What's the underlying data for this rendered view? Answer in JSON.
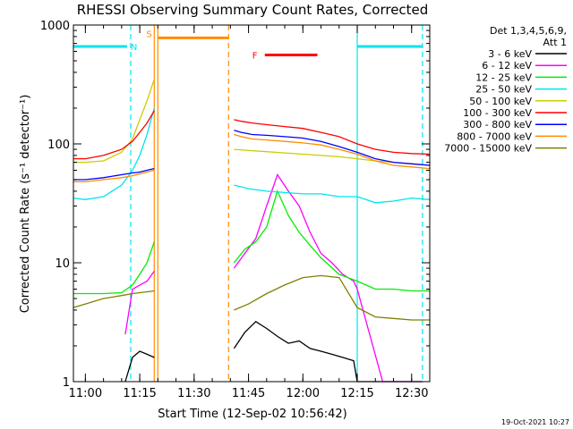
{
  "chart_data": {
    "type": "line",
    "title": "RHESSI Observing Summary Count Rates, Corrected",
    "xlabel": "Start Time (12-Sep-02 10:56:42)",
    "ylabel": "Corrected Count Rate (s⁻¹ detector⁻¹)",
    "y_scale": "log",
    "xlim": [
      "10:56:42",
      "12:35:00"
    ],
    "ylim": [
      1,
      1000
    ],
    "x_ticks": [
      "11:00",
      "11:15",
      "11:30",
      "11:45",
      "12:00",
      "12:15",
      "12:30"
    ],
    "y_ticks": [
      "1",
      "10",
      "100",
      "1000"
    ],
    "legend_header": [
      "Det 1,3,4,5,6,9,",
      "Att 1"
    ],
    "legend_position": "right",
    "timestamp": "19-Oct-2021 10:27",
    "annotations": [
      {
        "label": "N",
        "color": "#00e5ee",
        "bars": [
          [
            "10:56:42",
            "11:11:30"
          ],
          [
            "12:15:00",
            "12:33:00"
          ]
        ],
        "level": 660
      },
      {
        "label": "S",
        "color": "#ff8c00",
        "bars": [
          [
            "11:20:00",
            "11:39:30"
          ]
        ],
        "level": 780
      },
      {
        "label": "F",
        "color": "#ff0000",
        "bars": [
          [
            "11:49:30",
            "12:04:00"
          ]
        ],
        "level": 560
      }
    ],
    "markers": [
      {
        "time": "11:12:30",
        "style": "dashed",
        "color": "#00e5ee"
      },
      {
        "time": "11:19:00",
        "style": "solid",
        "color": "#ff8c00"
      },
      {
        "time": "11:20:00",
        "style": "solid",
        "color": "#ff8c00"
      },
      {
        "time": "11:39:30",
        "style": "dashed",
        "color": "#ff8c00"
      },
      {
        "time": "12:15:00",
        "style": "solid",
        "color": "#00e5ee"
      },
      {
        "time": "12:33:00",
        "style": "dashed",
        "color": "#00e5ee"
      }
    ],
    "gap": [
      "11:20:00",
      "11:41:00"
    ],
    "series": [
      {
        "name": "3 - 6 keV",
        "color": "#000000",
        "x": [
          "11:11:00",
          "11:13:00",
          "11:15:00",
          "11:17:00",
          "11:19:00",
          "11:41:00",
          "11:44:00",
          "11:47:00",
          "11:50:00",
          "11:53:00",
          "11:56:00",
          "11:59:00",
          "12:02:00",
          "12:05:00",
          "12:08:00",
          "12:11:00",
          "12:14:00",
          "12:15:00",
          "12:33:00"
        ],
        "y": [
          1.0,
          1.6,
          1.8,
          1.7,
          1.6,
          1.9,
          2.6,
          3.2,
          2.8,
          2.4,
          2.1,
          2.2,
          1.9,
          1.8,
          1.7,
          1.6,
          1.5,
          1.0,
          1.0
        ]
      },
      {
        "name": "6 - 12 keV",
        "color": "#ff00ff",
        "x": [
          "11:11:00",
          "11:13:00",
          "11:15:00",
          "11:17:00",
          "11:19:00",
          "11:41:00",
          "11:44:00",
          "11:47:00",
          "11:50:00",
          "11:53:00",
          "11:56:00",
          "11:59:00",
          "12:02:00",
          "12:05:00",
          "12:08:00",
          "12:11:00",
          "12:14:00",
          "12:15:00",
          "12:22:00",
          "12:33:00"
        ],
        "y": [
          2.5,
          6.0,
          6.5,
          7.0,
          8.5,
          9.0,
          12,
          16,
          30,
          55,
          40,
          30,
          18,
          12,
          10,
          8,
          7,
          6,
          1,
          1
        ]
      },
      {
        "name": "12 - 25 keV",
        "color": "#00ee00",
        "x": [
          "10:56:42",
          "11:05:00",
          "11:10:00",
          "11:13:00",
          "11:15:00",
          "11:17:00",
          "11:19:00",
          "11:41:00",
          "11:44:00",
          "11:47:00",
          "11:50:00",
          "11:53:00",
          "11:56:00",
          "11:59:00",
          "12:02:00",
          "12:05:00",
          "12:10:00",
          "12:15:00",
          "12:20:00",
          "12:25:00",
          "12:30:00",
          "12:35:00"
        ],
        "y": [
          5.5,
          5.5,
          5.6,
          6.5,
          8.0,
          10,
          15,
          10,
          13,
          15,
          20,
          40,
          25,
          18,
          14,
          11,
          8,
          7,
          6,
          6,
          5.8,
          5.8
        ]
      },
      {
        "name": "25 - 50 keV",
        "color": "#00e5ee",
        "x": [
          "10:56:42",
          "11:00:00",
          "11:05:00",
          "11:10:00",
          "11:13:00",
          "11:15:00",
          "11:17:00",
          "11:19:00",
          "11:41:00",
          "11:45:00",
          "11:50:00",
          "11:55:00",
          "12:00:00",
          "12:05:00",
          "12:10:00",
          "12:15:00",
          "12:20:00",
          "12:25:00",
          "12:30:00",
          "12:35:00"
        ],
        "y": [
          35,
          34,
          36,
          45,
          60,
          80,
          120,
          200,
          45,
          42,
          40,
          39,
          38,
          38,
          36,
          36,
          32,
          33,
          35,
          34
        ]
      },
      {
        "name": "50 - 100 keV",
        "color": "#cccc00",
        "x": [
          "10:56:42",
          "11:00:00",
          "11:05:00",
          "11:10:00",
          "11:13:00",
          "11:15:00",
          "11:17:00",
          "11:19:00",
          "11:41:00",
          "11:45:00",
          "11:50:00",
          "11:55:00",
          "12:00:00",
          "12:05:00",
          "12:10:00",
          "12:15:00",
          "12:20:00",
          "12:25:00",
          "12:30:00",
          "12:35:00"
        ],
        "y": [
          70,
          70,
          72,
          85,
          110,
          160,
          230,
          350,
          90,
          88,
          86,
          84,
          82,
          80,
          78,
          75,
          72,
          70,
          68,
          66
        ]
      },
      {
        "name": "100 - 300 keV",
        "color": "#ff0000",
        "x": [
          "10:56:42",
          "11:00:00",
          "11:05:00",
          "11:10:00",
          "11:13:00",
          "11:15:00",
          "11:17:00",
          "11:19:00",
          "11:41:00",
          "11:43:00",
          "11:46:00",
          "11:50:00",
          "11:55:00",
          "12:00:00",
          "12:05:00",
          "12:10:00",
          "12:15:00",
          "12:20:00",
          "12:25:00",
          "12:30:00",
          "12:35:00"
        ],
        "y": [
          75,
          75,
          80,
          90,
          105,
          125,
          150,
          190,
          160,
          155,
          150,
          145,
          140,
          135,
          125,
          115,
          100,
          90,
          85,
          83,
          82
        ]
      },
      {
        "name": "300 - 800 keV",
        "color": "#0000ff",
        "x": [
          "10:56:42",
          "11:00:00",
          "11:05:00",
          "11:10:00",
          "11:13:00",
          "11:15:00",
          "11:17:00",
          "11:19:00",
          "11:41:00",
          "11:43:00",
          "11:46:00",
          "11:50:00",
          "11:55:00",
          "12:00:00",
          "12:05:00",
          "12:10:00",
          "12:15:00",
          "12:20:00",
          "12:25:00",
          "12:30:00",
          "12:35:00"
        ],
        "y": [
          50,
          50,
          52,
          55,
          57,
          58,
          60,
          62,
          130,
          125,
          120,
          118,
          115,
          112,
          105,
          95,
          85,
          75,
          70,
          68,
          66
        ]
      },
      {
        "name": "800 - 7000 keV",
        "color": "#ff8c00",
        "x": [
          "10:56:42",
          "11:00:00",
          "11:05:00",
          "11:10:00",
          "11:13:00",
          "11:15:00",
          "11:17:00",
          "11:19:00",
          "11:41:00",
          "11:43:00",
          "11:46:00",
          "11:50:00",
          "11:55:00",
          "12:00:00",
          "12:05:00",
          "12:10:00",
          "12:15:00",
          "12:20:00",
          "12:25:00",
          "12:30:00",
          "12:35:00"
        ],
        "y": [
          48,
          48,
          50,
          52,
          54,
          56,
          58,
          60,
          120,
          115,
          110,
          108,
          105,
          102,
          98,
          90,
          82,
          72,
          66,
          64,
          62
        ]
      },
      {
        "name": "7000 - 15000 keV",
        "color": "#808000",
        "x": [
          "10:56:42",
          "11:00:00",
          "11:05:00",
          "11:10:00",
          "11:13:00",
          "11:15:00",
          "11:17:00",
          "11:19:00",
          "11:41:00",
          "11:45:00",
          "11:50:00",
          "11:55:00",
          "12:00:00",
          "12:05:00",
          "12:10:00",
          "12:15:00",
          "12:20:00",
          "12:25:00",
          "12:30:00",
          "12:35:00"
        ],
        "y": [
          4.2,
          4.5,
          5.0,
          5.3,
          5.5,
          5.6,
          5.7,
          5.8,
          4.0,
          4.5,
          5.5,
          6.5,
          7.5,
          7.8,
          7.5,
          4.2,
          3.5,
          3.4,
          3.3,
          3.3
        ]
      }
    ]
  }
}
